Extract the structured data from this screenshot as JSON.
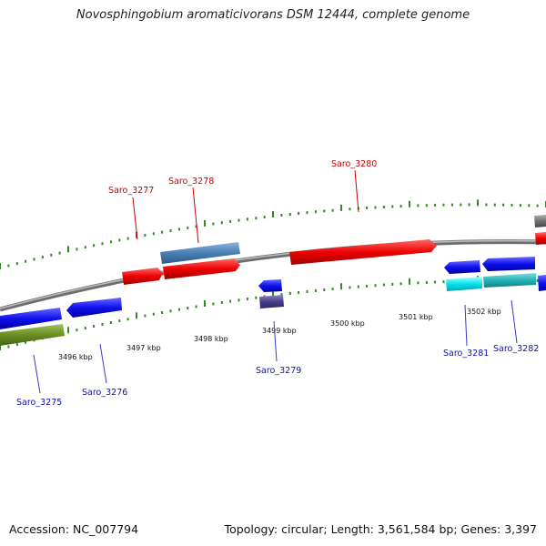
{
  "title": "Novosphingobium aromaticivorans DSM 12444, complete genome",
  "footer": {
    "accession": "Accession: NC_007794",
    "summary": "Topology: circular; Length: 3,561,584 bp; Genes: 3,397"
  },
  "colors": {
    "backbone": "#8c8c8c",
    "tick": "#2e8b1e",
    "label_forward": "#cc0000",
    "label_reverse": "#1010b0",
    "leader": "#3a3ad0",
    "leader_forward": "#cc0000"
  },
  "scale_labels": [
    "3496 kbp",
    "3497 kbp",
    "3498 kbp",
    "3499 kbp",
    "3500 kbp",
    "3501 kbp",
    "3502 kbp"
  ],
  "gene_labels": [
    {
      "name": "Saro_3275",
      "strand": "reverse"
    },
    {
      "name": "Saro_3276",
      "strand": "reverse"
    },
    {
      "name": "Saro_3277",
      "strand": "forward"
    },
    {
      "name": "Saro_3278",
      "strand": "forward"
    },
    {
      "name": "Saro_3279",
      "strand": "reverse"
    },
    {
      "name": "Saro_3280",
      "strand": "forward"
    },
    {
      "name": "Saro_3281",
      "strand": "reverse"
    },
    {
      "name": "Saro_3282",
      "strand": "reverse"
    }
  ]
}
